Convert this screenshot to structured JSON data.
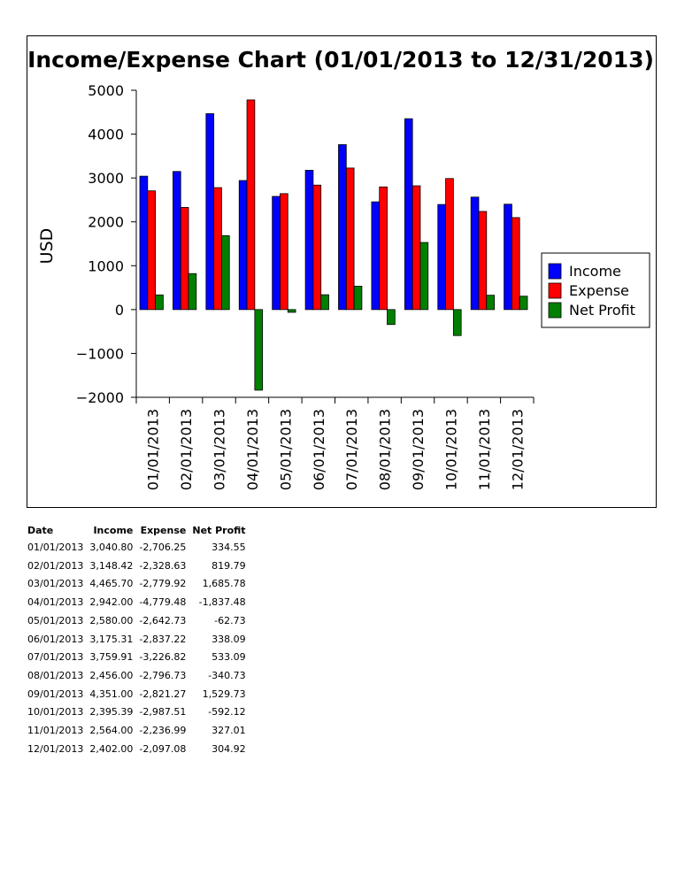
{
  "colors": {
    "income": "#0000ff",
    "expense": "#ff0000",
    "net_profit": "#008000"
  },
  "chart_data": {
    "type": "bar",
    "title": "Income/Expense Chart (01/01/2013 to 12/31/2013)",
    "ylabel": "USD",
    "xlabel": "",
    "ylim": [
      -2000,
      5000
    ],
    "yticks": [
      5000,
      4000,
      3000,
      2000,
      1000,
      0,
      -1000,
      -2000
    ],
    "ytick_labels": [
      "5000",
      "4000",
      "3000",
      "2000",
      "1000",
      "0",
      "−1000",
      "−2000"
    ],
    "grid": false,
    "legend_position": "right",
    "categories": [
      "01/01/2013",
      "02/01/2013",
      "03/01/2013",
      "04/01/2013",
      "05/01/2013",
      "06/01/2013",
      "07/01/2013",
      "08/01/2013",
      "09/01/2013",
      "10/01/2013",
      "11/01/2013",
      "12/01/2013"
    ],
    "series": [
      {
        "name": "Income",
        "color": "#0000ff",
        "values": [
          3040.8,
          3148.42,
          4465.7,
          2942.0,
          2580.0,
          3175.31,
          3759.91,
          2456.0,
          4351.0,
          2395.39,
          2564.0,
          2402.0
        ]
      },
      {
        "name": "Expense",
        "color": "#ff0000",
        "values": [
          2706.25,
          2328.63,
          2779.92,
          4779.48,
          2642.73,
          2837.22,
          3226.82,
          2796.73,
          2821.27,
          2987.51,
          2236.99,
          2097.08
        ]
      },
      {
        "name": "Net Profit",
        "color": "#008000",
        "values": [
          334.55,
          819.79,
          1685.78,
          -1837.48,
          -62.73,
          338.09,
          533.09,
          -340.73,
          1529.73,
          -592.12,
          327.01,
          304.92
        ]
      }
    ]
  },
  "table": {
    "headers": [
      "Date",
      "Income",
      "Expense",
      "Net Profit"
    ],
    "rows": [
      [
        "01/01/2013",
        "3,040.80",
        "-2,706.25",
        "334.55"
      ],
      [
        "02/01/2013",
        "3,148.42",
        "-2,328.63",
        "819.79"
      ],
      [
        "03/01/2013",
        "4,465.70",
        "-2,779.92",
        "1,685.78"
      ],
      [
        "04/01/2013",
        "2,942.00",
        "-4,779.48",
        "-1,837.48"
      ],
      [
        "05/01/2013",
        "2,580.00",
        "-2,642.73",
        "-62.73"
      ],
      [
        "06/01/2013",
        "3,175.31",
        "-2,837.22",
        "338.09"
      ],
      [
        "07/01/2013",
        "3,759.91",
        "-3,226.82",
        "533.09"
      ],
      [
        "08/01/2013",
        "2,456.00",
        "-2,796.73",
        "-340.73"
      ],
      [
        "09/01/2013",
        "4,351.00",
        "-2,821.27",
        "1,529.73"
      ],
      [
        "10/01/2013",
        "2,395.39",
        "-2,987.51",
        "-592.12"
      ],
      [
        "11/01/2013",
        "2,564.00",
        "-2,236.99",
        "327.01"
      ],
      [
        "12/01/2013",
        "2,402.00",
        "-2,097.08",
        "304.92"
      ]
    ]
  }
}
